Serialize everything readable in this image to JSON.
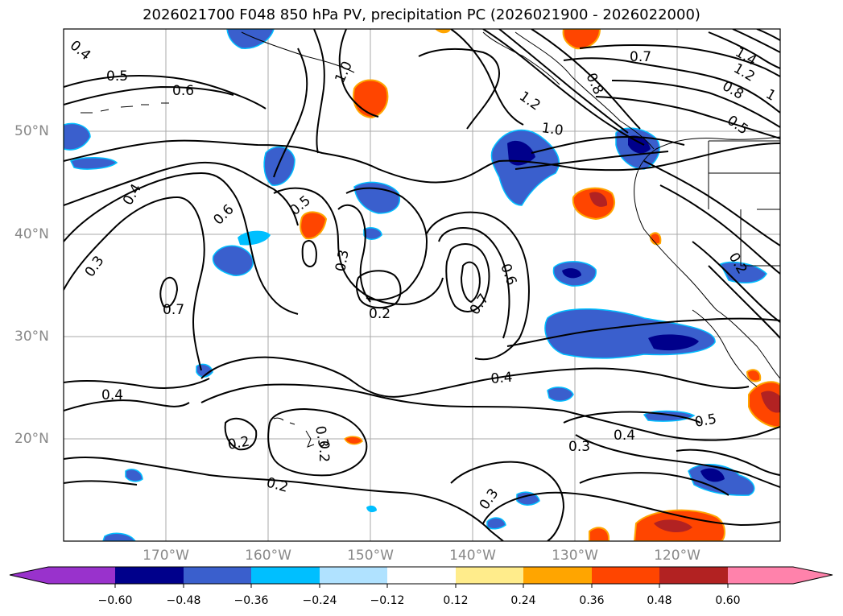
{
  "title": "2026021700 F048 850 hPa PV, precipitation PC (2026021900 - 2026022000)",
  "lon_labels": [
    "170°W",
    "160°W",
    "150°W",
    "140°W",
    "130°W",
    "120°W"
  ],
  "lat_labels": [
    "50°N",
    "40°N",
    "30°N",
    "20°N"
  ],
  "colorbar": {
    "ticks": [
      "−0.60",
      "−0.48",
      "−0.36",
      "−0.24",
      "−0.12",
      "0.12",
      "0.24",
      "0.36",
      "0.48",
      "0.60"
    ],
    "colors": [
      "#9932cc",
      "#00008b",
      "#3a5fcd",
      "#00bfff",
      "#b0e2ff",
      "#ffffff",
      "#ffec8b",
      "#ffa500",
      "#ff4500",
      "#b22222",
      "#ff82ab"
    ]
  },
  "contour_labels": [
    "0.4",
    "0.5",
    "0.6",
    "1.0",
    "0.7",
    "1.4",
    "1.2",
    "1",
    "0.8",
    "1.2",
    "0.8",
    "0.5",
    "1.0",
    "0.4",
    "0.6",
    "0.5",
    "0.3",
    "0.3",
    "0.2",
    "0.6",
    "0.7",
    "0.7",
    "0.2",
    "0.4",
    "0.4",
    "0.2",
    "0.3",
    "0.2",
    "0.3",
    "0.3",
    "0.4",
    "0.5"
  ]
}
